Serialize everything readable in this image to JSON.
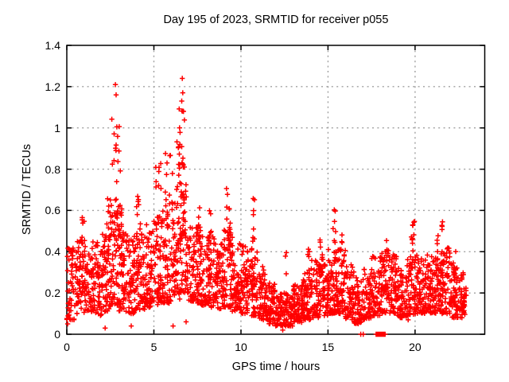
{
  "chart_data": {
    "type": "scatter",
    "title": "Day 195 of 2023, SRMTID for receiver p055",
    "xlabel": "GPS time / hours",
    "ylabel": "SRMTID / TECUs",
    "xlim": [
      0,
      24
    ],
    "ylim": [
      0,
      1.4
    ],
    "xticks": [
      0,
      5,
      10,
      15,
      20
    ],
    "xtick_labels": [
      "0",
      "5",
      "10",
      "15",
      "20"
    ],
    "yticks": [
      0,
      0.2,
      0.4,
      0.6,
      0.8,
      1,
      1.2,
      1.4
    ],
    "ytick_labels": [
      "0",
      "0.2",
      "0.4",
      "0.6",
      "0.8",
      "1",
      "1.2",
      "1.4"
    ],
    "grid": true,
    "grid_style": "dotted",
    "grid_color": "#a0a0a0",
    "axis_color": "#000000",
    "marker": "plus",
    "marker_color": "#ff0000",
    "legend": "none",
    "data_x_range": [
      0,
      22.97
    ],
    "envelope_bins": [
      [
        0.0,
        0.5,
        0.07,
        0.42,
        55
      ],
      [
        0.5,
        1.0,
        0.1,
        0.46,
        58
      ],
      [
        1.0,
        1.5,
        0.11,
        0.43,
        60
      ],
      [
        1.5,
        2.0,
        0.09,
        0.46,
        60
      ],
      [
        2.0,
        2.5,
        0.11,
        0.5,
        60
      ],
      [
        2.5,
        3.0,
        0.14,
        0.62,
        55
      ],
      [
        3.0,
        3.5,
        0.11,
        0.52,
        60
      ],
      [
        3.5,
        4.0,
        0.1,
        0.46,
        60
      ],
      [
        4.0,
        4.5,
        0.11,
        0.52,
        60
      ],
      [
        4.5,
        5.0,
        0.13,
        0.54,
        60
      ],
      [
        5.0,
        5.5,
        0.14,
        0.58,
        58
      ],
      [
        5.5,
        6.0,
        0.15,
        0.6,
        58
      ],
      [
        6.0,
        6.5,
        0.17,
        0.64,
        58
      ],
      [
        6.5,
        7.0,
        0.2,
        0.68,
        52
      ],
      [
        7.0,
        7.5,
        0.16,
        0.52,
        60
      ],
      [
        7.5,
        8.0,
        0.14,
        0.52,
        60
      ],
      [
        8.0,
        8.5,
        0.13,
        0.5,
        60
      ],
      [
        8.5,
        9.0,
        0.12,
        0.46,
        60
      ],
      [
        9.0,
        9.5,
        0.13,
        0.52,
        58
      ],
      [
        9.5,
        10.0,
        0.11,
        0.46,
        60
      ],
      [
        10.0,
        10.5,
        0.1,
        0.43,
        60
      ],
      [
        10.5,
        11.0,
        0.09,
        0.42,
        58
      ],
      [
        11.0,
        11.5,
        0.07,
        0.33,
        60
      ],
      [
        11.5,
        12.0,
        0.05,
        0.26,
        60
      ],
      [
        12.0,
        12.5,
        0.04,
        0.21,
        60
      ],
      [
        12.5,
        13.0,
        0.04,
        0.2,
        60
      ],
      [
        13.0,
        13.5,
        0.05,
        0.24,
        60
      ],
      [
        13.5,
        14.0,
        0.07,
        0.31,
        60
      ],
      [
        14.0,
        14.5,
        0.08,
        0.36,
        60
      ],
      [
        14.5,
        15.0,
        0.09,
        0.41,
        60
      ],
      [
        15.0,
        15.5,
        0.1,
        0.43,
        58
      ],
      [
        15.5,
        16.0,
        0.1,
        0.43,
        58
      ],
      [
        16.0,
        16.5,
        0.07,
        0.34,
        60
      ],
      [
        16.5,
        17.0,
        0.05,
        0.28,
        55
      ],
      [
        17.0,
        17.5,
        0.07,
        0.32,
        55
      ],
      [
        17.5,
        18.0,
        0.09,
        0.38,
        52
      ],
      [
        18.0,
        18.5,
        0.1,
        0.43,
        58
      ],
      [
        18.5,
        19.0,
        0.1,
        0.39,
        60
      ],
      [
        19.0,
        19.5,
        0.08,
        0.35,
        60
      ],
      [
        19.5,
        20.0,
        0.09,
        0.39,
        58
      ],
      [
        20.0,
        20.5,
        0.1,
        0.41,
        60
      ],
      [
        20.5,
        21.0,
        0.1,
        0.39,
        60
      ],
      [
        21.0,
        21.5,
        0.1,
        0.43,
        58
      ],
      [
        21.5,
        22.0,
        0.1,
        0.43,
        58
      ],
      [
        22.0,
        22.5,
        0.08,
        0.35,
        60
      ],
      [
        22.5,
        22.95,
        0.08,
        0.3,
        45
      ]
    ],
    "spikes": [
      [
        0.95,
        0.15,
        0.35,
        0.58,
        8
      ],
      [
        2.45,
        0.25,
        0.4,
        0.66,
        12
      ],
      [
        2.85,
        0.3,
        0.45,
        1.05,
        26
      ],
      [
        3.15,
        0.2,
        0.4,
        0.62,
        10
      ],
      [
        4.1,
        0.25,
        0.4,
        0.67,
        10
      ],
      [
        5.25,
        0.3,
        0.45,
        0.83,
        12
      ],
      [
        5.9,
        0.4,
        0.5,
        0.91,
        14
      ],
      [
        6.4,
        0.2,
        0.5,
        0.95,
        10
      ],
      [
        6.65,
        0.25,
        0.45,
        1.1,
        36
      ],
      [
        7.55,
        0.15,
        0.4,
        0.64,
        8
      ],
      [
        8.2,
        0.15,
        0.4,
        0.63,
        8
      ],
      [
        9.3,
        0.2,
        0.4,
        0.73,
        12
      ],
      [
        10.7,
        0.15,
        0.35,
        0.67,
        10
      ],
      [
        12.6,
        0.08,
        0.28,
        0.41,
        3
      ],
      [
        13.9,
        0.12,
        0.28,
        0.44,
        6
      ],
      [
        14.6,
        0.15,
        0.3,
        0.5,
        8
      ],
      [
        15.4,
        0.12,
        0.35,
        0.62,
        10
      ],
      [
        15.75,
        0.12,
        0.3,
        0.5,
        8
      ],
      [
        18.35,
        0.12,
        0.25,
        0.47,
        6
      ],
      [
        19.9,
        0.15,
        0.3,
        0.55,
        12
      ],
      [
        21.3,
        0.12,
        0.3,
        0.5,
        8
      ],
      [
        21.6,
        0.15,
        0.3,
        0.55,
        10
      ],
      [
        22.3,
        0.12,
        0.25,
        0.42,
        6
      ]
    ],
    "peak_points": [
      [
        2.79,
        1.21
      ],
      [
        2.83,
        1.16
      ],
      [
        6.63,
        1.24
      ],
      [
        6.66,
        1.17
      ],
      [
        6.6,
        1.13
      ],
      [
        6.7,
        1.08
      ]
    ],
    "low_outliers": [
      [
        0.05,
        0.05
      ],
      [
        2.2,
        0.03
      ],
      [
        3.7,
        0.04
      ],
      [
        6.1,
        0.04
      ],
      [
        6.85,
        0.06
      ],
      [
        12.4,
        0.02
      ],
      [
        19.6,
        0.07
      ]
    ],
    "zero_points": [
      16.88,
      17.02
    ],
    "zero_run": {
      "x_start": 17.76,
      "x_end": 18.28,
      "y": 0
    },
    "seed": 7
  }
}
